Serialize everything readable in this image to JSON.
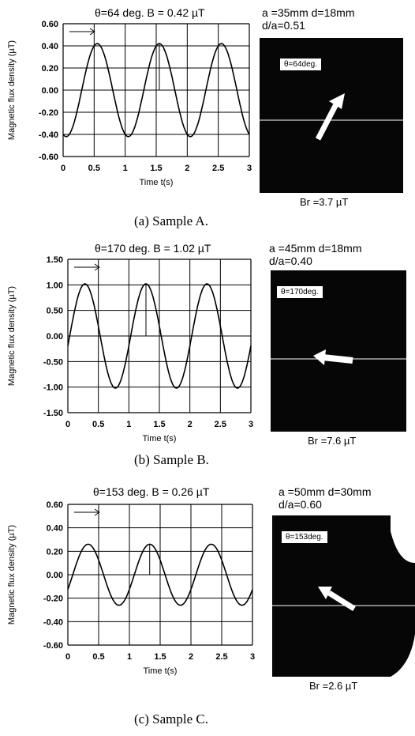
{
  "ylabel": "Magnetic flux density  (µT)",
  "xlabel": "Time  t(s)",
  "panels": [
    {
      "title": "θ=64 deg.   B = 0.42 µT",
      "header": [
        "a =35mm  d=18mm",
        "d/a=0.51"
      ],
      "theta_label": "θ=64deg.",
      "br": "Br =3.7 µT",
      "caption": "(a) Sample A."
    },
    {
      "title": "θ=170 deg.  B = 1.02 µT",
      "header": [
        "a =45mm  d=18mm",
        "d/a=0.40"
      ],
      "theta_label": "θ=170deg.",
      "br": "Br =7.6 µT",
      "caption": "(b) Sample B."
    },
    {
      "title": "θ=153 deg.  B = 0.26 µT",
      "header": [
        "a =50mm  d=30mm",
        "d/a=0.60"
      ],
      "theta_label": "θ=153deg.",
      "br": "Br =2.6 µT",
      "caption": "(c) Sample C."
    }
  ],
  "chart_data": [
    {
      "type": "line",
      "title": "θ=64 deg.   B = 0.42 µT",
      "xlabel": "Time  t(s)",
      "ylabel": "Magnetic flux density  (µT)",
      "xlim": [
        0,
        3
      ],
      "ylim": [
        -0.6,
        0.6
      ],
      "xticks": [
        "0",
        "0.5",
        "1",
        "1.5",
        "2",
        "2.5",
        "3"
      ],
      "yticks": [
        "0.60",
        "0.40",
        "0.20",
        "0.00",
        "-0.20",
        "-0.40",
        "-0.60"
      ],
      "grid": true,
      "series": [
        {
          "amplitude": 0.42,
          "period": 1.0,
          "first_peak_x": 0.55
        }
      ]
    },
    {
      "type": "line",
      "title": "θ=170 deg.  B = 1.02 µT",
      "xlabel": "Time  t(s)",
      "ylabel": "Magnetic flux density  (µT)",
      "xlim": [
        0,
        3
      ],
      "ylim": [
        -1.5,
        1.5
      ],
      "xticks": [
        "0",
        "0.5",
        "1",
        "1.5",
        "2",
        "2.5",
        "3"
      ],
      "yticks": [
        "1.50",
        "1.00",
        "0.50",
        "0.00",
        "-0.50",
        "-1.00",
        "-1.50"
      ],
      "grid": true,
      "series": [
        {
          "amplitude": 1.02,
          "period": 1.0,
          "first_peak_x": 0.28
        }
      ]
    },
    {
      "type": "line",
      "title": "θ=153 deg.  B = 0.26 µT",
      "xlabel": "Time  t(s)",
      "ylabel": "Magnetic flux density  (µT)",
      "xlim": [
        0,
        3
      ],
      "ylim": [
        -0.6,
        0.6
      ],
      "xticks": [
        "0",
        "0.5",
        "1",
        "1.5",
        "2",
        "2.5",
        "3"
      ],
      "yticks": [
        "0.60",
        "0.40",
        "0.20",
        "0.00",
        "-0.20",
        "-0.40",
        "-0.60"
      ],
      "grid": true,
      "series": [
        {
          "amplitude": 0.26,
          "period": 1.0,
          "first_peak_x": 0.33
        }
      ]
    }
  ]
}
